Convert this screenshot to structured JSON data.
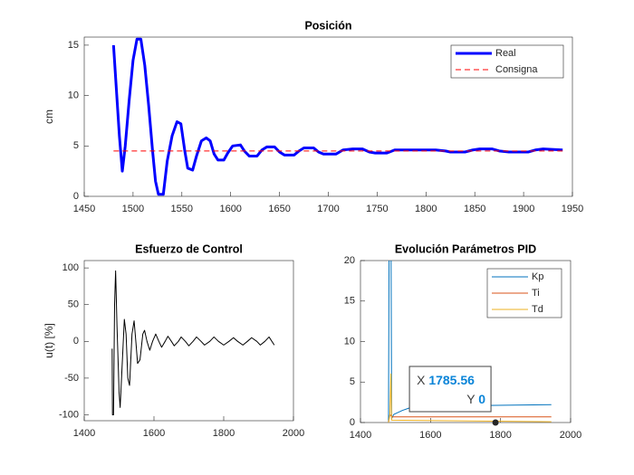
{
  "chart_data": [
    {
      "type": "line",
      "title": "Posición",
      "y_label": "cm",
      "xlim": [
        1450,
        1950
      ],
      "xticks": [
        1450,
        1500,
        1550,
        1600,
        1650,
        1700,
        1750,
        1800,
        1850,
        1900,
        1950
      ],
      "ylim": [
        0,
        15.8
      ],
      "yticks": [
        0,
        5,
        10,
        15
      ],
      "grid": false,
      "legend": "northeast",
      "series": [
        {
          "name": "Real",
          "color": "#0000ff",
          "width": 3,
          "line_style": "-",
          "x": [
            1480,
            1483,
            1486,
            1489,
            1492,
            1496,
            1500,
            1504,
            1508,
            1512,
            1516,
            1520,
            1523,
            1526,
            1531,
            1535,
            1540,
            1545,
            1549,
            1553,
            1556,
            1561,
            1565,
            1570,
            1575,
            1579,
            1583,
            1587,
            1593,
            1597,
            1602,
            1610,
            1614,
            1619,
            1627,
            1632,
            1637,
            1645,
            1650,
            1655,
            1665,
            1670,
            1675,
            1685,
            1690,
            1695,
            1708,
            1715,
            1725,
            1735,
            1742,
            1748,
            1760,
            1768,
            1790,
            1810,
            1820,
            1825,
            1840,
            1848,
            1855,
            1868,
            1875,
            1885,
            1905,
            1912,
            1920,
            1940
          ],
          "values": [
            15,
            10.5,
            6,
            2.5,
            5,
            9.5,
            13.5,
            15.6,
            15.6,
            13,
            9,
            4.5,
            1.5,
            0.2,
            0.2,
            3.5,
            6,
            7.4,
            7.2,
            4.5,
            2.8,
            2.6,
            4,
            5.5,
            5.8,
            5.5,
            4.2,
            3.6,
            3.6,
            4.3,
            5,
            5.1,
            4.5,
            4,
            4,
            4.6,
            4.9,
            4.9,
            4.4,
            4.1,
            4.1,
            4.5,
            4.8,
            4.8,
            4.4,
            4.2,
            4.2,
            4.6,
            4.7,
            4.7,
            4.4,
            4.3,
            4.3,
            4.6,
            4.6,
            4.6,
            4.5,
            4.4,
            4.4,
            4.6,
            4.7,
            4.7,
            4.5,
            4.4,
            4.4,
            4.6,
            4.7,
            4.6
          ]
        },
        {
          "name": "Consigna",
          "color": "#ff0000",
          "width": 1,
          "line_style": "--",
          "x": [
            1480,
            1940
          ],
          "values": [
            4.5,
            4.5
          ]
        }
      ]
    },
    {
      "type": "line",
      "title": "Esfuerzo de Control",
      "y_label": "u(t) [%]",
      "xlim": [
        1400,
        2000
      ],
      "xticks": [
        1400,
        1600,
        1800,
        2000
      ],
      "ylim": [
        -108,
        110
      ],
      "yticks": [
        -100,
        -50,
        0,
        50,
        100
      ],
      "grid": false,
      "series": [
        {
          "color": "#000000",
          "width": 1,
          "line_style": "-",
          "x": [
            1480,
            1481,
            1484,
            1487,
            1490,
            1494,
            1500,
            1503,
            1508,
            1515,
            1520,
            1525,
            1530,
            1537,
            1543,
            1548,
            1553,
            1560,
            1568,
            1573,
            1580,
            1588,
            1596,
            1605,
            1614,
            1622,
            1632,
            1640,
            1650,
            1658,
            1670,
            1678,
            1690,
            1700,
            1712,
            1722,
            1735,
            1745,
            1760,
            1772,
            1785,
            1800,
            1815,
            1828,
            1840,
            1855,
            1868,
            1880,
            1895,
            1905,
            1918,
            1930,
            1945
          ],
          "values": [
            -10,
            -100,
            -100,
            50,
            96,
            20,
            -70,
            -90,
            -40,
            30,
            10,
            -50,
            -60,
            10,
            28,
            0,
            -30,
            -25,
            10,
            15,
            0,
            -12,
            0,
            10,
            0,
            -8,
            0,
            7,
            0,
            -6,
            0,
            6,
            0,
            -6,
            0,
            6,
            0,
            -5,
            0,
            6,
            0,
            -5,
            0,
            5,
            0,
            -5,
            0,
            5,
            0,
            -5,
            0,
            6,
            -5
          ]
        }
      ]
    },
    {
      "type": "line",
      "title": "Evolución Parámetros PID",
      "xlim": [
        1400,
        2000
      ],
      "xticks": [
        1400,
        1600,
        1800,
        2000
      ],
      "ylim": [
        0,
        20
      ],
      "yticks": [
        0,
        5,
        10,
        15,
        20
      ],
      "grid": false,
      "legend": "northeast",
      "series": [
        {
          "name": "Kp",
          "color": "#0072bd",
          "width": 1,
          "line_style": "-",
          "x": [
            1480,
            1482,
            1487,
            1489,
            1495,
            1520,
            1540,
            1560,
            1945
          ],
          "values": [
            0,
            25,
            25,
            0.5,
            1,
            1.5,
            1.8,
            2,
            2.2
          ]
        },
        {
          "name": "Ti",
          "color": "#d95319",
          "width": 1,
          "line_style": "-",
          "x": [
            1480,
            1484,
            1490,
            1945
          ],
          "values": [
            0,
            1,
            0.7,
            0.7
          ]
        },
        {
          "name": "Td",
          "color": "#edb120",
          "width": 1,
          "line_style": "-",
          "x": [
            1480,
            1484,
            1487,
            1489,
            1945
          ],
          "values": [
            0,
            1,
            6,
            0.3,
            0.1
          ]
        }
      ],
      "datatip": {
        "x_label": "X",
        "x": 1785.56,
        "y_label": "Y",
        "y": 0
      }
    }
  ]
}
